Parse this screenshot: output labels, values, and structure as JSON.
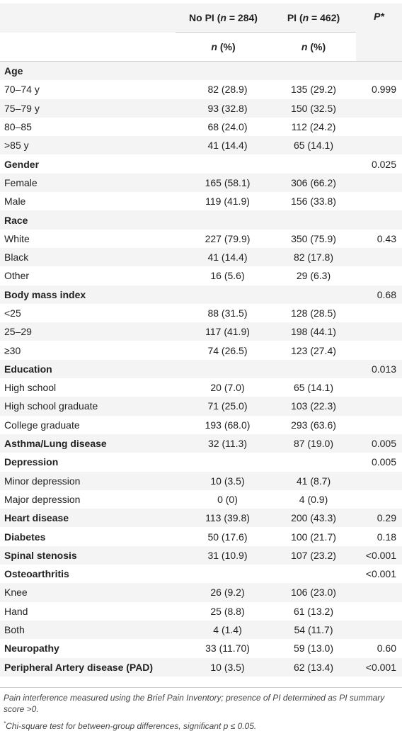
{
  "header": {
    "col1": "No PI (n = 284)",
    "col2": "PI (n = 462)",
    "col3": "P*",
    "sub1": "n (%)",
    "sub2": "n (%)"
  },
  "rows": [
    {
      "label": "Age",
      "bold": true,
      "v1": "",
      "v2": "",
      "p": ""
    },
    {
      "label": "70–74 y",
      "bold": false,
      "v1": "82 (28.9)",
      "v2": "135 (29.2)",
      "p": "0.999"
    },
    {
      "label": "75–79 y",
      "bold": false,
      "v1": "93 (32.8)",
      "v2": "150 (32.5)",
      "p": ""
    },
    {
      "label": "80–85",
      "bold": false,
      "v1": "68 (24.0)",
      "v2": "112 (24.2)",
      "p": ""
    },
    {
      "label": ">85 y",
      "bold": false,
      "v1": "41 (14.4)",
      "v2": "65 (14.1)",
      "p": ""
    },
    {
      "label": "Gender",
      "bold": true,
      "v1": "",
      "v2": "",
      "p": "0.025"
    },
    {
      "label": "Female",
      "bold": false,
      "v1": "165 (58.1)",
      "v2": "306 (66.2)",
      "p": ""
    },
    {
      "label": "Male",
      "bold": false,
      "v1": "119 (41.9)",
      "v2": "156 (33.8)",
      "p": ""
    },
    {
      "label": "Race",
      "bold": true,
      "v1": "",
      "v2": "",
      "p": ""
    },
    {
      "label": "White",
      "bold": false,
      "v1": "227 (79.9)",
      "v2": "350 (75.9)",
      "p": "0.43"
    },
    {
      "label": "Black",
      "bold": false,
      "v1": "41 (14.4)",
      "v2": "82 (17.8)",
      "p": ""
    },
    {
      "label": "Other",
      "bold": false,
      "v1": "16 (5.6)",
      "v2": "29 (6.3)",
      "p": ""
    },
    {
      "label": "Body mass index",
      "bold": true,
      "v1": "",
      "v2": "",
      "p": "0.68"
    },
    {
      "label": "<25",
      "bold": false,
      "v1": "88 (31.5)",
      "v2": "128 (28.5)",
      "p": ""
    },
    {
      "label": "25–29",
      "bold": false,
      "v1": "117 (41.9)",
      "v2": "198 (44.1)",
      "p": ""
    },
    {
      "label": "≥30",
      "bold": false,
      "v1": "74 (26.5)",
      "v2": "123 (27.4)",
      "p": ""
    },
    {
      "label": "Education",
      "bold": true,
      "v1": "",
      "v2": "",
      "p": "0.013"
    },
    {
      "label": "High school",
      "bold": false,
      "v1": "20 (7.0)",
      "v2": "65 (14.1)",
      "p": ""
    },
    {
      "label": "High school graduate",
      "bold": false,
      "v1": "71 (25.0)",
      "v2": "103 (22.3)",
      "p": ""
    },
    {
      "label": "College graduate",
      "bold": false,
      "v1": "193 (68.0)",
      "v2": "293 (63.6)",
      "p": ""
    },
    {
      "label": "Asthma/Lung disease",
      "bold": true,
      "v1": "32 (11.3)",
      "v2": "87 (19.0)",
      "p": "0.005"
    },
    {
      "label": "Depression",
      "bold": true,
      "v1": "",
      "v2": "",
      "p": "0.005"
    },
    {
      "label": "Minor depression",
      "bold": false,
      "v1": "10 (3.5)",
      "v2": "41 (8.7)",
      "p": ""
    },
    {
      "label": "Major depression",
      "bold": false,
      "v1": "0 (0)",
      "v2": "4 (0.9)",
      "p": ""
    },
    {
      "label": "Heart disease",
      "bold": true,
      "v1": "113 (39.8)",
      "v2": "200 (43.3)",
      "p": "0.29"
    },
    {
      "label": "Diabetes",
      "bold": true,
      "v1": "50 (17.6)",
      "v2": "100 (21.7)",
      "p": "0.18"
    },
    {
      "label": "Spinal stenosis",
      "bold": true,
      "v1": "31 (10.9)",
      "v2": "107 (23.2)",
      "p": "<0.001"
    },
    {
      "label": "Osteoarthritis",
      "bold": true,
      "v1": "",
      "v2": "",
      "p": "<0.001"
    },
    {
      "label": "Knee",
      "bold": false,
      "v1": "26 (9.2)",
      "v2": "106 (23.0)",
      "p": ""
    },
    {
      "label": "Hand",
      "bold": false,
      "v1": "25 (8.8)",
      "v2": "61 (13.2)",
      "p": ""
    },
    {
      "label": "Both",
      "bold": false,
      "v1": "4 (1.4)",
      "v2": "54 (11.7)",
      "p": ""
    },
    {
      "label": "Neuropathy",
      "bold": true,
      "v1": "33 (11.70)",
      "v2": "59 (13.0)",
      "p": "0.60"
    },
    {
      "label": "Peripheral Artery disease (PAD)",
      "bold": true,
      "v1": "10 (3.5)",
      "v2": "62 (13.4)",
      "p": "<0.001"
    }
  ],
  "footnotes": {
    "note1": "Pain interference measured using the Brief Pain Inventory; presence of PI determined as PI summary score >0.",
    "marker": "*",
    "note2": "Chi-square test for between-group differences, significant p ≤ 0.05."
  }
}
